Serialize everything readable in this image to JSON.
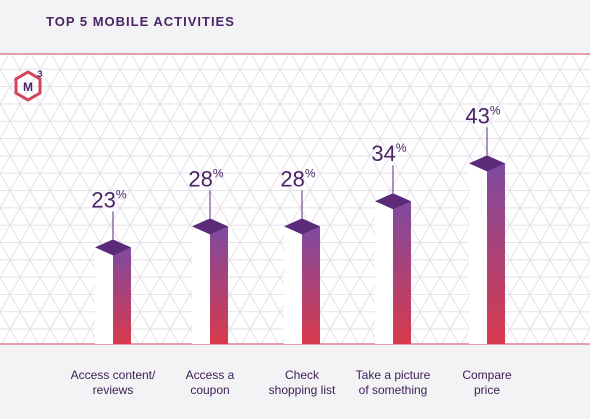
{
  "title": "TOP 5 MOBILE ACTIVITIES",
  "logo": {
    "letter": "M",
    "superscript": "3"
  },
  "colors": {
    "title": "#4a2466",
    "bar_top": "#5b2a78",
    "gradient_top": "#7e4aa0",
    "gradient_bottom": "#d83a4c",
    "frame_line": "#d2445a",
    "background": "#f3f2f5"
  },
  "chart_data": {
    "type": "bar",
    "categories": [
      "Access content/\nreviews",
      "Access a\ncoupon",
      "Check\nshopping list",
      "Take a picture\nof something",
      "Compare\nprice"
    ],
    "values": [
      23,
      28,
      28,
      34,
      43
    ],
    "value_suffix": "%",
    "title": "TOP 5 MOBILE ACTIVITIES",
    "xlabel": "",
    "ylabel": "",
    "ylim": [
      0,
      50
    ],
    "grid": false,
    "legend": "none"
  }
}
